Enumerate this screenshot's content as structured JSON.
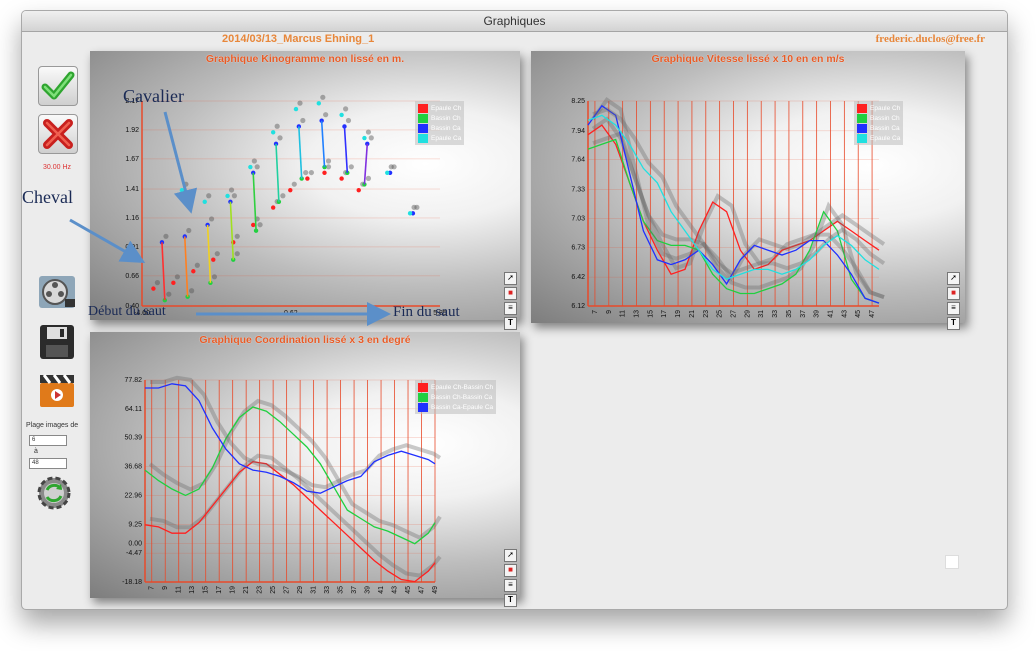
{
  "window": {
    "title": "Graphiques"
  },
  "header": {
    "session": "2014/03/13_Marcus Ehning_1",
    "email": "frederic.duclos@free.fr"
  },
  "sidebar": {
    "ok_icon": "checkmark-icon",
    "cancel_icon": "x-icon",
    "frequency": "30.00 Hz",
    "film_icon": "film-reel-icon",
    "save_icon": "floppy-disk-icon",
    "clapper_icon": "clapperboard-icon",
    "range_label": "Plage images de",
    "range_from": "6",
    "range_sep": "à",
    "range_to": "48",
    "refresh_icon": "gear-refresh-icon"
  },
  "annotations": {
    "cavalier": "Cavalier",
    "cheval": "Cheval",
    "debut": "Début du saut",
    "fin": "Fin du saut"
  },
  "colors": {
    "red": "#ff2020",
    "green": "#20d040",
    "blue": "#2030ff",
    "cyan": "#20e0e0",
    "title": "#e85b26",
    "gridline": "#e84a2a"
  },
  "chart_data": [
    {
      "type": "scatter",
      "title": "Graphique Kinogramme non lissé en m.",
      "y_ticks": [
        "2.17",
        "1.92",
        "1.67",
        "1.41",
        "1.16",
        "0.91",
        "0.66",
        "0.40"
      ],
      "x_ticks": [
        "-4.60",
        "0.62",
        "5.85"
      ],
      "ylim": [
        0.4,
        2.17
      ],
      "xlim": [
        -4.6,
        5.85
      ],
      "legend": [
        "Epaule Ch",
        "Bassin Ch",
        "Bassin Ca",
        "Epaule Ca"
      ],
      "series": [
        {
          "name": "Epaule Ch",
          "x": [
            -4.2,
            -3.5,
            -2.8,
            -2.1,
            -1.4,
            -0.7,
            0.0,
            0.6,
            1.2,
            1.8,
            2.4,
            3.0
          ],
          "y": [
            0.55,
            0.6,
            0.7,
            0.8,
            0.95,
            1.1,
            1.25,
            1.4,
            1.5,
            1.55,
            1.5,
            1.4
          ]
        },
        {
          "name": "Bassin Ch",
          "x": [
            -3.8,
            -3.0,
            -2.2,
            -1.4,
            -0.6,
            0.2,
            1.0,
            1.8,
            2.6,
            3.2
          ],
          "y": [
            0.45,
            0.48,
            0.6,
            0.8,
            1.05,
            1.3,
            1.5,
            1.6,
            1.55,
            1.45
          ]
        },
        {
          "name": "Bassin Ca",
          "x": [
            -3.9,
            -3.1,
            -2.3,
            -1.5,
            -0.7,
            0.1,
            0.9,
            1.7,
            2.5,
            3.3,
            4.1,
            4.9
          ],
          "y": [
            0.95,
            1.0,
            1.1,
            1.3,
            1.55,
            1.8,
            1.95,
            2.0,
            1.95,
            1.8,
            1.55,
            1.2
          ]
        },
        {
          "name": "Epaule Ca",
          "x": [
            -3.2,
            -2.4,
            -1.6,
            -0.8,
            0.0,
            0.8,
            1.6,
            2.4,
            3.2,
            4.0,
            4.8
          ],
          "y": [
            1.4,
            1.3,
            1.35,
            1.6,
            1.9,
            2.1,
            2.15,
            2.05,
            1.85,
            1.55,
            1.2
          ]
        }
      ]
    },
    {
      "type": "line",
      "title": "Graphique Vitesse lissé x 10 en  en m/s",
      "y_ticks": [
        "8.25",
        "7.94",
        "7.64",
        "7.33",
        "7.03",
        "6.73",
        "6.42",
        "6.12"
      ],
      "x_ticks": [
        "7",
        "9",
        "11",
        "13",
        "15",
        "17",
        "19",
        "21",
        "23",
        "25",
        "27",
        "29",
        "31",
        "33",
        "35",
        "37",
        "39",
        "41",
        "43",
        "45",
        "47"
      ],
      "ylim": [
        6.12,
        8.25
      ],
      "xlim": [
        6,
        48
      ],
      "legend": [
        "Epaule Ch",
        "Bassin Ch",
        "Bassin Ca",
        "Epaule Ca"
      ],
      "series": [
        {
          "name": "Epaule Ch",
          "x": [
            6,
            8,
            10,
            12,
            14,
            16,
            18,
            20,
            22,
            24,
            26,
            28,
            30,
            32,
            34,
            36,
            38,
            40,
            42,
            44,
            46,
            48
          ],
          "y": [
            7.9,
            8.0,
            7.8,
            7.4,
            7.0,
            6.7,
            6.45,
            6.5,
            6.9,
            7.2,
            7.1,
            6.7,
            6.5,
            6.55,
            6.7,
            6.75,
            6.8,
            6.9,
            7.0,
            6.9,
            6.8,
            6.7
          ]
        },
        {
          "name": "Bassin Ch",
          "x": [
            6,
            8,
            10,
            12,
            14,
            16,
            18,
            20,
            22,
            24,
            26,
            28,
            30,
            32,
            34,
            36,
            38,
            40,
            42,
            44,
            46,
            48
          ],
          "y": [
            7.75,
            7.8,
            7.85,
            7.4,
            7.0,
            6.8,
            6.75,
            6.75,
            6.7,
            6.45,
            6.3,
            6.25,
            6.25,
            6.3,
            6.35,
            6.45,
            6.7,
            7.1,
            6.9,
            6.4,
            6.2,
            6.15
          ]
        },
        {
          "name": "Bassin Ca",
          "x": [
            6,
            8,
            10,
            12,
            14,
            16,
            18,
            20,
            22,
            24,
            26,
            28,
            30,
            32,
            34,
            36,
            38,
            40,
            42,
            44,
            46,
            48
          ],
          "y": [
            8.0,
            8.2,
            8.1,
            7.5,
            6.9,
            6.6,
            6.55,
            6.6,
            6.7,
            6.55,
            6.35,
            6.6,
            6.75,
            6.7,
            6.65,
            6.7,
            6.8,
            6.8,
            6.65,
            6.45,
            6.2,
            6.15
          ]
        },
        {
          "name": "Epaule Ca",
          "x": [
            6,
            8,
            10,
            12,
            14,
            16,
            18,
            20,
            22,
            24,
            26,
            28,
            30,
            32,
            34,
            36,
            38,
            40,
            42,
            44,
            46,
            48
          ],
          "y": [
            8.05,
            8.1,
            8.0,
            7.8,
            7.55,
            7.4,
            7.1,
            6.9,
            6.7,
            6.5,
            6.4,
            6.45,
            6.5,
            6.5,
            6.45,
            6.5,
            6.6,
            6.75,
            6.85,
            6.75,
            6.6,
            6.5
          ]
        }
      ]
    },
    {
      "type": "line",
      "title": "Graphique Coordination lissé x 3 en degré",
      "y_ticks": [
        "77.82",
        "64.11",
        "50.39",
        "36.68",
        "22.96",
        "9.25",
        "0.00",
        "-4.47",
        "-18.18"
      ],
      "x_ticks": [
        "7",
        "9",
        "11",
        "13",
        "15",
        "17",
        "19",
        "21",
        "23",
        "25",
        "27",
        "29",
        "31",
        "33",
        "35",
        "37",
        "39",
        "41",
        "43",
        "45",
        "47",
        "49"
      ],
      "ylim": [
        -18.18,
        77.82
      ],
      "xlim": [
        6,
        49
      ],
      "legend": [
        "Epaule Ch-Bassin Ch",
        "Bassin Ch-Bassin Ca",
        "Bassin Ca-Epaule Ca"
      ],
      "series": [
        {
          "name": "Epaule Ch-Bassin Ch",
          "x": [
            6,
            8,
            10,
            12,
            14,
            16,
            18,
            20,
            22,
            24,
            26,
            28,
            30,
            32,
            34,
            36,
            38,
            40,
            42,
            44,
            46,
            48,
            49
          ],
          "y": [
            9,
            8,
            5,
            5,
            10,
            18,
            26,
            34,
            39,
            38,
            33,
            28,
            22,
            16,
            10,
            4,
            -2,
            -8,
            -13,
            -17,
            -18,
            -13,
            -9
          ]
        },
        {
          "name": "Bassin Ch-Bassin Ca",
          "x": [
            6,
            8,
            10,
            12,
            14,
            16,
            18,
            20,
            22,
            24,
            26,
            28,
            30,
            32,
            34,
            36,
            38,
            40,
            42,
            44,
            46,
            48,
            49
          ],
          "y": [
            35,
            30,
            26,
            23,
            26,
            36,
            50,
            60,
            65,
            63,
            58,
            52,
            46,
            38,
            27,
            16,
            12,
            8,
            6,
            3,
            0,
            5,
            10
          ]
        },
        {
          "name": "Bassin Ca-Epaule Ca",
          "x": [
            6,
            8,
            10,
            12,
            14,
            16,
            18,
            20,
            22,
            24,
            26,
            28,
            30,
            32,
            34,
            36,
            38,
            40,
            42,
            44,
            46,
            48,
            49
          ],
          "y": [
            74,
            74,
            76,
            75,
            68,
            55,
            45,
            38,
            35,
            34,
            32,
            29,
            25,
            24,
            27,
            30,
            32,
            39,
            42,
            44,
            42,
            40,
            38
          ]
        }
      ]
    }
  ]
}
